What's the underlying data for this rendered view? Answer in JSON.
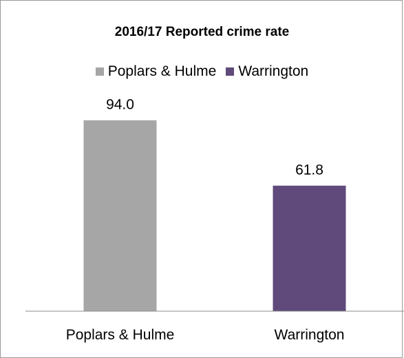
{
  "chart_data": {
    "type": "bar",
    "title": "2016/17 Reported crime rate",
    "categories": [
      "Poplars & Hulme",
      "Warrington"
    ],
    "values": [
      94.0,
      61.8
    ],
    "value_labels": [
      "94.0",
      "61.8"
    ],
    "colors": [
      "#a6a6a6",
      "#604a7b"
    ],
    "legend": {
      "position": "top",
      "entries": [
        {
          "label": "Poplars & Hulme",
          "color": "#a6a6a6"
        },
        {
          "label": "Warrington",
          "color": "#604a7b"
        }
      ]
    },
    "xlabel": "",
    "ylabel": "",
    "ylim": [
      0,
      100
    ],
    "grid": false
  }
}
